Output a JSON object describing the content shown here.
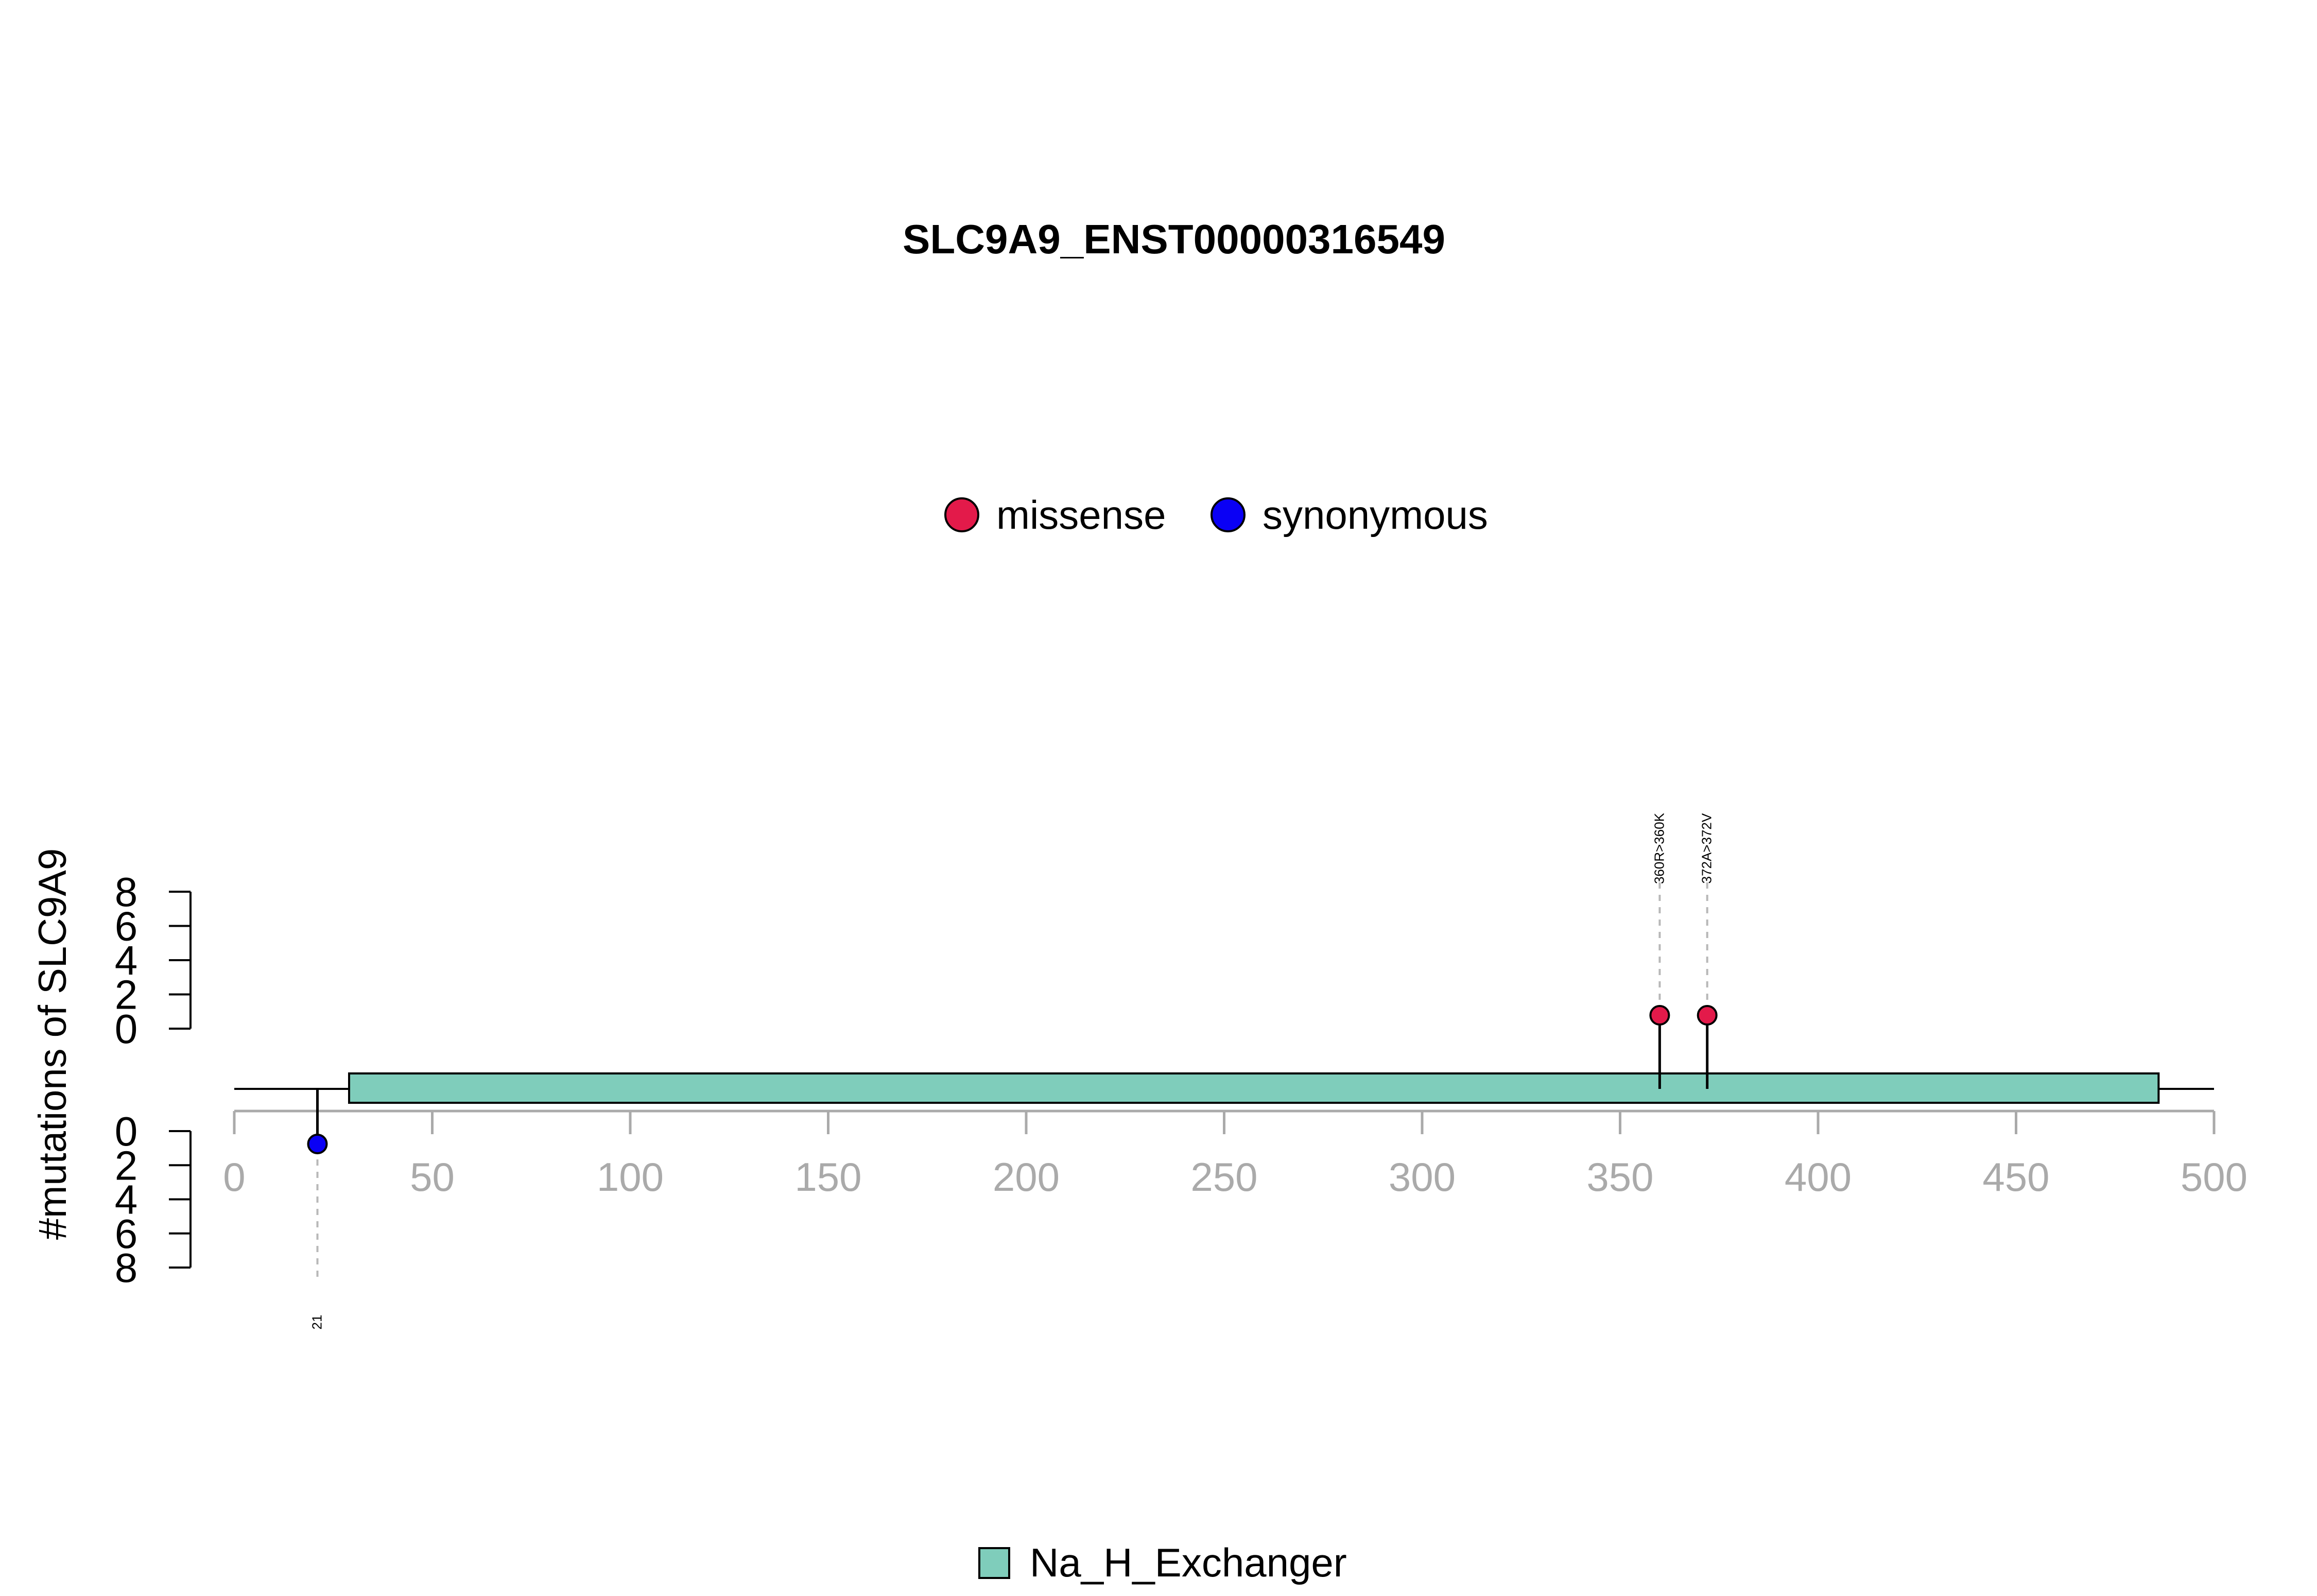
{
  "chart_data": {
    "type": "lollipop",
    "title": "SLC9A9_ENST00000316549",
    "ylabel": "#mutations of SLC9A9",
    "xlim": [
      0,
      500
    ],
    "x_ticks": [
      0,
      50,
      100,
      150,
      200,
      250,
      300,
      350,
      400,
      450,
      500
    ],
    "ylim_upper": [
      0,
      8
    ],
    "y_ticks_upper": [
      0,
      2,
      4,
      6,
      8
    ],
    "ylim_lower": [
      0,
      8
    ],
    "y_ticks_lower": [
      0,
      2,
      4,
      6,
      8
    ],
    "grid": false,
    "legend_top": {
      "placement": "top-center",
      "entries": [
        {
          "label": "missense",
          "color": "#E31A4A"
        },
        {
          "label": "synonymous",
          "color": "#0A00F5"
        }
      ]
    },
    "legend_bottom": {
      "placement": "bottom-center",
      "entries": [
        {
          "label": "Na_H_Exchanger",
          "color": "#7FCDBB"
        }
      ]
    },
    "protein_length": 500,
    "domains": [
      {
        "name": "Na_H_Exchanger",
        "start": 29,
        "end": 486,
        "color": "#7FCDBB"
      }
    ],
    "mutations": [
      {
        "position": 360,
        "label": "360R>360K",
        "type": "missense",
        "count": 1,
        "side": "upper"
      },
      {
        "position": 372,
        "label": "372A>372V",
        "type": "missense",
        "count": 1,
        "side": "upper"
      },
      {
        "position": 21,
        "label": "21",
        "type": "synonymous",
        "count": 1,
        "side": "lower"
      }
    ]
  }
}
